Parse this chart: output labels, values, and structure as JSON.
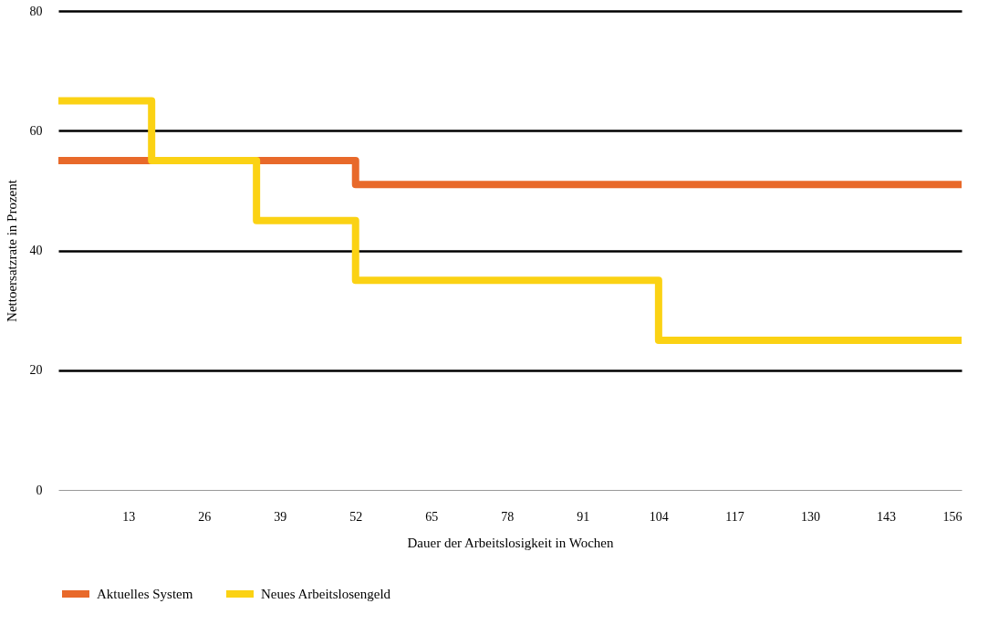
{
  "chart_data": {
    "type": "step",
    "xlabel": "Dauer der Arbeitslosigkeit in Wochen",
    "ylabel": "Nettoersatzrate in Prozent",
    "xlim": [
      1,
      156
    ],
    "xticks": [
      13,
      26,
      39,
      52,
      65,
      78,
      91,
      104,
      117,
      130,
      143,
      156
    ],
    "ylim": [
      0,
      80
    ],
    "yticks": [
      0,
      20,
      40,
      60,
      80
    ],
    "grid": "y",
    "legend": "bottom left",
    "line_style": "solid",
    "marker": "none",
    "series": [
      {
        "name": "Aktuelles System",
        "color": "#e8692a",
        "x": [
          1,
          52,
          156
        ],
        "values": [
          55,
          51,
          51
        ]
      },
      {
        "name": "Neues Arbeitslosengeld",
        "color": "#fbd214",
        "x": [
          1,
          17,
          35,
          52,
          104,
          156
        ],
        "values": [
          65,
          55,
          45,
          35,
          25,
          25
        ]
      }
    ]
  }
}
